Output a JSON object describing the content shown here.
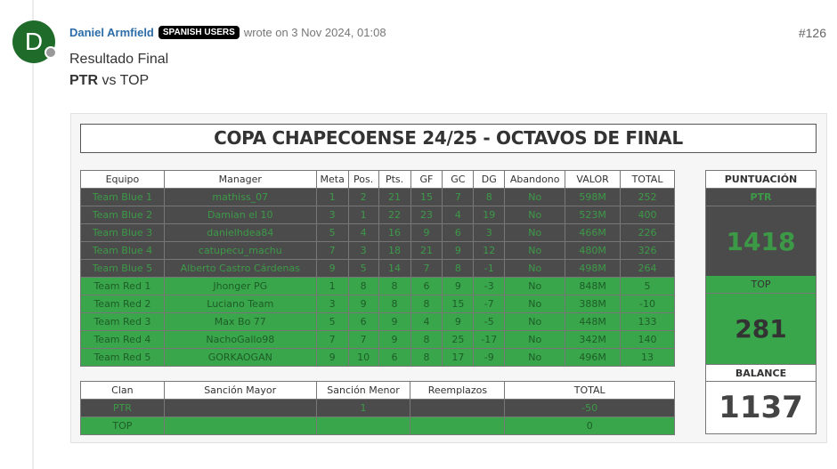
{
  "post": {
    "avatar_letter": "D",
    "author": "Daniel Armfield",
    "badge": "SPANISH USERS",
    "meta": "wrote on 3 Nov 2024, 01:08",
    "number": "#126",
    "line1": "Resultado Final",
    "team_a": "PTR",
    "vs_rest": " vs TOP"
  },
  "image": {
    "title": "COPA CHAPECOENSE 24/25 - OCTAVOS DE FINAL",
    "headers": [
      "Equipo",
      "Manager",
      "Meta",
      "Pos.",
      "Pts.",
      "GF",
      "GC",
      "DG",
      "Abandono",
      "VALOR",
      "TOTAL"
    ],
    "rows": [
      [
        "Team Blue 1",
        "mathiss_07",
        "1",
        "2",
        "21",
        "15",
        "7",
        "8",
        "No",
        "598M",
        "252"
      ],
      [
        "Team Blue 2",
        "Damian el 10",
        "3",
        "1",
        "22",
        "23",
        "4",
        "19",
        "No",
        "523M",
        "400"
      ],
      [
        "Team Blue 3",
        "danielhdea84",
        "5",
        "4",
        "16",
        "9",
        "6",
        "3",
        "No",
        "466M",
        "226"
      ],
      [
        "Team Blue 4",
        "catupecu_machu",
        "7",
        "3",
        "18",
        "21",
        "9",
        "12",
        "No",
        "480M",
        "326"
      ],
      [
        "Team Blue 5",
        "Alberto Castro Cárdenas",
        "9",
        "5",
        "14",
        "7",
        "8",
        "-1",
        "No",
        "498M",
        "264"
      ],
      [
        "Team Red 1",
        "Jhonger PG",
        "1",
        "8",
        "8",
        "6",
        "9",
        "-3",
        "No",
        "848M",
        "5"
      ],
      [
        "Team Red 2",
        "Luciano Team",
        "3",
        "9",
        "8",
        "8",
        "15",
        "-7",
        "No",
        "388M",
        "-10"
      ],
      [
        "Team Red 3",
        "Max Bo 77",
        "5",
        "6",
        "9",
        "4",
        "9",
        "-5",
        "No",
        "448M",
        "133"
      ],
      [
        "Team Red 4",
        "NachoGallo98",
        "7",
        "7",
        "9",
        "8",
        "25",
        "-17",
        "No",
        "342M",
        "140"
      ],
      [
        "Team Red 5",
        "GORKAOGAN",
        "9",
        "10",
        "6",
        "8",
        "17",
        "-9",
        "No",
        "496M",
        "13"
      ]
    ],
    "pen_headers": [
      "Clan",
      "Sanción Mayor",
      "Sanción Menor",
      "Reemplazos",
      "TOTAL"
    ],
    "pen_rows": [
      [
        "PTR",
        "",
        "1",
        "",
        "-50"
      ],
      [
        "TOP",
        "",
        "",
        "",
        "0"
      ]
    ],
    "score": {
      "header": "PUNTUACIÓN",
      "team_a": "PTR",
      "score_a": "1418",
      "team_b": "TOP",
      "score_b": "281",
      "balance_label": "BALANCE",
      "balance": "1137"
    },
    "colors": {
      "dark": "#4b4b4b",
      "green": "#3aa64c",
      "avatar": "#1f6b29"
    }
  }
}
